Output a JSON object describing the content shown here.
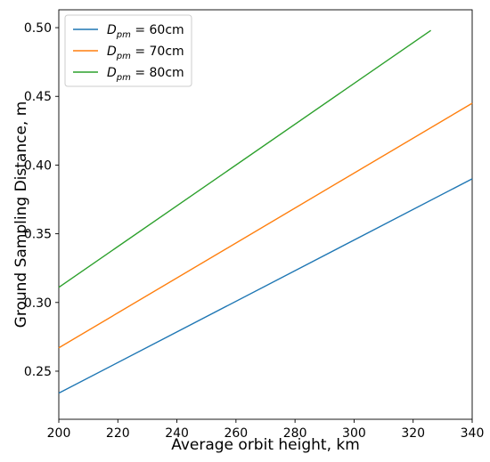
{
  "chart_data": {
    "type": "line",
    "title": "",
    "xlabel": "Average orbit height, km",
    "ylabel": "Ground Sampling Distance, m",
    "xlim": [
      200,
      340
    ],
    "ylim": [
      0.215,
      0.513
    ],
    "xticks": [
      200,
      220,
      240,
      260,
      280,
      300,
      320,
      340
    ],
    "yticks": [
      0.25,
      0.3,
      0.35,
      0.4,
      0.45,
      0.5
    ],
    "ytick_labels": [
      "0.25",
      "0.30",
      "0.35",
      "0.40",
      "0.45",
      "0.50"
    ],
    "grid": false,
    "legend_position": "upper-left",
    "series": [
      {
        "name": "= 60cm",
        "legend_symbol": "D",
        "legend_subscript": "pm",
        "color": "#1f77b4",
        "x": [
          200,
          340
        ],
        "y": [
          0.234,
          0.39
        ]
      },
      {
        "name": "= 70cm",
        "legend_symbol": "D",
        "legend_subscript": "pm",
        "color": "#ff7f0e",
        "x": [
          200,
          340
        ],
        "y": [
          0.267,
          0.445
        ]
      },
      {
        "name": "= 80cm",
        "legend_symbol": "D",
        "legend_subscript": "pm",
        "color": "#2ca02c",
        "x": [
          200,
          326
        ],
        "y": [
          0.311,
          0.498
        ]
      }
    ]
  }
}
